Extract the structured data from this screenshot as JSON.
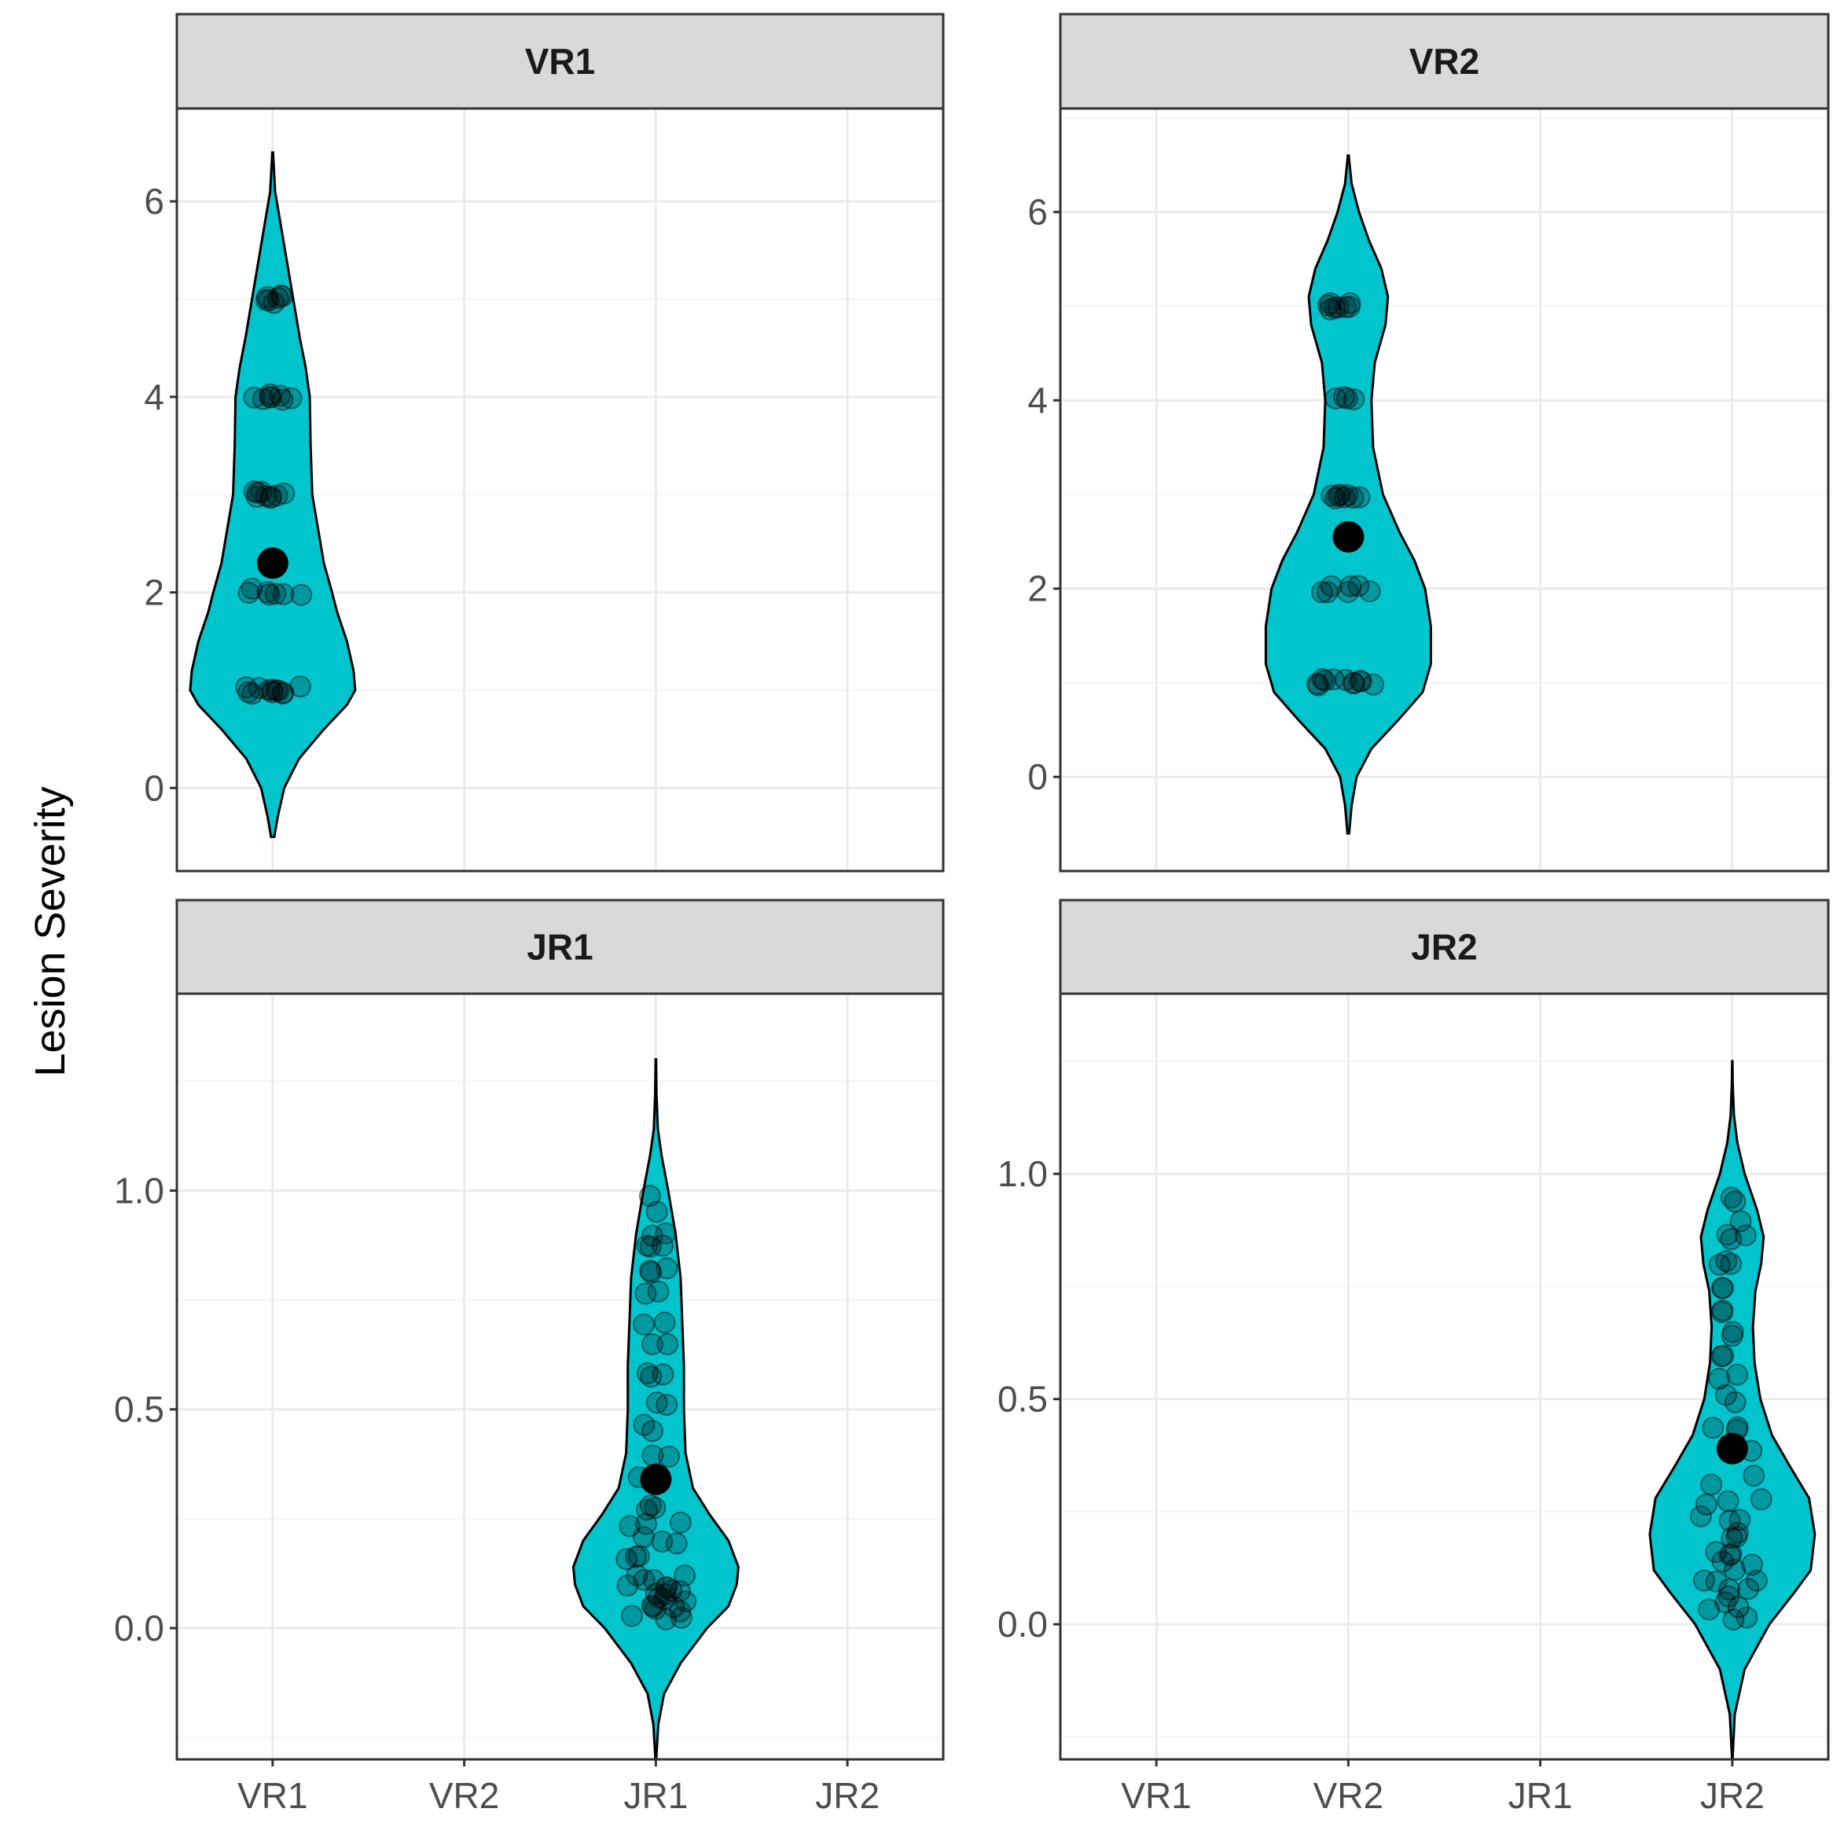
{
  "chart_data": {
    "type": "violin",
    "ylabel": "Lesion Severity",
    "xlabel": "",
    "categories": [
      "VR1",
      "VR2",
      "JR1",
      "JR2"
    ],
    "colors": {
      "violin_fill": "#00c5cd",
      "violin_stroke": "#000000",
      "point": "#000000",
      "strip_bg": "#d9d9d9",
      "grid_major": "#ebebeb",
      "grid_minor": "#f4f4f4",
      "frame": "#333333"
    },
    "panels": [
      {
        "title": "VR1",
        "category": "VR1",
        "ylim": [
          -0.85,
          6.95
        ],
        "yticks": [
          0,
          2,
          4,
          6
        ],
        "ytick_labels": [
          "0",
          "2",
          "4",
          "6"
        ],
        "mean": 2.3,
        "density": [
          [
            -0.5,
            0.02
          ],
          [
            -0.3,
            0.06
          ],
          [
            0,
            0.14
          ],
          [
            0.3,
            0.32
          ],
          [
            0.6,
            0.62
          ],
          [
            0.85,
            0.9
          ],
          [
            1.0,
            1.0
          ],
          [
            1.2,
            0.98
          ],
          [
            1.5,
            0.9
          ],
          [
            1.8,
            0.78
          ],
          [
            2.0,
            0.72
          ],
          [
            2.3,
            0.62
          ],
          [
            2.6,
            0.56
          ],
          [
            2.9,
            0.5
          ],
          [
            3.0,
            0.48
          ],
          [
            3.5,
            0.46
          ],
          [
            4.0,
            0.45
          ],
          [
            4.3,
            0.4
          ],
          [
            4.6,
            0.33
          ],
          [
            5.0,
            0.25
          ],
          [
            5.4,
            0.17
          ],
          [
            5.8,
            0.09
          ],
          [
            6.1,
            0.03
          ],
          [
            6.5,
            0.005
          ]
        ],
        "points": [
          {
            "y": 1,
            "n": 12
          },
          {
            "y": 2,
            "n": 7
          },
          {
            "y": 3,
            "n": 9
          },
          {
            "y": 4,
            "n": 8
          },
          {
            "y": 5,
            "n": 7
          }
        ]
      },
      {
        "title": "VR2",
        "category": "VR2",
        "ylim": [
          -1.0,
          7.1
        ],
        "yticks": [
          0,
          2,
          4,
          6
        ],
        "ytick_labels": [
          "0",
          "2",
          "4",
          "6"
        ],
        "mean": 2.55,
        "density": [
          [
            -0.6,
            0.01
          ],
          [
            -0.3,
            0.04
          ],
          [
            0,
            0.1
          ],
          [
            0.3,
            0.28
          ],
          [
            0.6,
            0.6
          ],
          [
            0.9,
            0.9
          ],
          [
            1.2,
            1.0
          ],
          [
            1.6,
            1.0
          ],
          [
            2.0,
            0.93
          ],
          [
            2.3,
            0.8
          ],
          [
            2.6,
            0.62
          ],
          [
            3.0,
            0.42
          ],
          [
            3.5,
            0.3
          ],
          [
            4.0,
            0.28
          ],
          [
            4.4,
            0.32
          ],
          [
            4.8,
            0.45
          ],
          [
            5.1,
            0.48
          ],
          [
            5.4,
            0.4
          ],
          [
            5.7,
            0.25
          ],
          [
            6.0,
            0.13
          ],
          [
            6.3,
            0.04
          ],
          [
            6.6,
            0.005
          ]
        ],
        "points": [
          {
            "y": 1,
            "n": 11
          },
          {
            "y": 2,
            "n": 7
          },
          {
            "y": 3,
            "n": 8
          },
          {
            "y": 4,
            "n": 4
          },
          {
            "y": 5,
            "n": 8
          }
        ]
      },
      {
        "title": "JR1",
        "category": "JR1",
        "ylim": [
          -0.3,
          1.45
        ],
        "yticks": [
          0.0,
          0.5,
          1.0
        ],
        "ytick_labels": [
          "0.0",
          "0.5",
          "1.0"
        ],
        "mean": 0.34,
        "density": [
          [
            -0.3,
            0.005
          ],
          [
            -0.22,
            0.03
          ],
          [
            -0.15,
            0.1
          ],
          [
            -0.08,
            0.3
          ],
          [
            0.0,
            0.62
          ],
          [
            0.05,
            0.88
          ],
          [
            0.1,
            0.98
          ],
          [
            0.14,
            1.0
          ],
          [
            0.2,
            0.88
          ],
          [
            0.26,
            0.65
          ],
          [
            0.32,
            0.45
          ],
          [
            0.4,
            0.36
          ],
          [
            0.5,
            0.34
          ],
          [
            0.6,
            0.34
          ],
          [
            0.7,
            0.32
          ],
          [
            0.8,
            0.3
          ],
          [
            0.9,
            0.24
          ],
          [
            1.0,
            0.15
          ],
          [
            1.08,
            0.07
          ],
          [
            1.14,
            0.025
          ],
          [
            1.22,
            0.008
          ],
          [
            1.3,
            0.003
          ]
        ],
        "points": [
          {
            "y": 0.02,
            "n": 3
          },
          {
            "y": 0.04,
            "n": 4
          },
          {
            "y": 0.06,
            "n": 4
          },
          {
            "y": 0.08,
            "n": 4
          },
          {
            "y": 0.1,
            "n": 4
          },
          {
            "y": 0.12,
            "n": 3
          },
          {
            "y": 0.16,
            "n": 3
          },
          {
            "y": 0.2,
            "n": 3
          },
          {
            "y": 0.24,
            "n": 3
          },
          {
            "y": 0.28,
            "n": 3
          },
          {
            "y": 0.34,
            "n": 2
          },
          {
            "y": 0.4,
            "n": 2
          },
          {
            "y": 0.46,
            "n": 2
          },
          {
            "y": 0.52,
            "n": 2
          },
          {
            "y": 0.58,
            "n": 3
          },
          {
            "y": 0.64,
            "n": 2
          },
          {
            "y": 0.7,
            "n": 2
          },
          {
            "y": 0.76,
            "n": 2
          },
          {
            "y": 0.82,
            "n": 3
          },
          {
            "y": 0.87,
            "n": 3
          },
          {
            "y": 0.9,
            "n": 2
          },
          {
            "y": 0.95,
            "n": 1
          },
          {
            "y": 0.99,
            "n": 1
          }
        ]
      },
      {
        "title": "JR2",
        "category": "JR2",
        "ylim": [
          -0.3,
          1.4
        ],
        "yticks": [
          0.0,
          0.5,
          1.0
        ],
        "ytick_labels": [
          "0.0",
          "0.5",
          "1.0"
        ],
        "mean": 0.39,
        "density": [
          [
            -0.3,
            0.003
          ],
          [
            -0.2,
            0.03
          ],
          [
            -0.1,
            0.15
          ],
          [
            0.0,
            0.45
          ],
          [
            0.07,
            0.75
          ],
          [
            0.12,
            0.95
          ],
          [
            0.2,
            1.0
          ],
          [
            0.28,
            0.93
          ],
          [
            0.35,
            0.7
          ],
          [
            0.42,
            0.48
          ],
          [
            0.5,
            0.34
          ],
          [
            0.58,
            0.27
          ],
          [
            0.66,
            0.25
          ],
          [
            0.74,
            0.28
          ],
          [
            0.8,
            0.35
          ],
          [
            0.86,
            0.38
          ],
          [
            0.92,
            0.3
          ],
          [
            1.0,
            0.15
          ],
          [
            1.07,
            0.06
          ],
          [
            1.13,
            0.02
          ],
          [
            1.2,
            0.005
          ],
          [
            1.25,
            0.002
          ]
        ],
        "points": [
          {
            "y": 0.01,
            "n": 2
          },
          {
            "y": 0.04,
            "n": 3
          },
          {
            "y": 0.07,
            "n": 3
          },
          {
            "y": 0.1,
            "n": 3
          },
          {
            "y": 0.13,
            "n": 3
          },
          {
            "y": 0.16,
            "n": 3
          },
          {
            "y": 0.2,
            "n": 3
          },
          {
            "y": 0.24,
            "n": 3
          },
          {
            "y": 0.27,
            "n": 3
          },
          {
            "y": 0.32,
            "n": 2
          },
          {
            "y": 0.38,
            "n": 2
          },
          {
            "y": 0.44,
            "n": 3
          },
          {
            "y": 0.5,
            "n": 2
          },
          {
            "y": 0.55,
            "n": 2
          },
          {
            "y": 0.6,
            "n": 2
          },
          {
            "y": 0.64,
            "n": 2
          },
          {
            "y": 0.7,
            "n": 2
          },
          {
            "y": 0.75,
            "n": 2
          },
          {
            "y": 0.8,
            "n": 3
          },
          {
            "y": 0.86,
            "n": 3
          },
          {
            "y": 0.9,
            "n": 1
          },
          {
            "y": 0.94,
            "n": 2
          }
        ]
      }
    ]
  }
}
